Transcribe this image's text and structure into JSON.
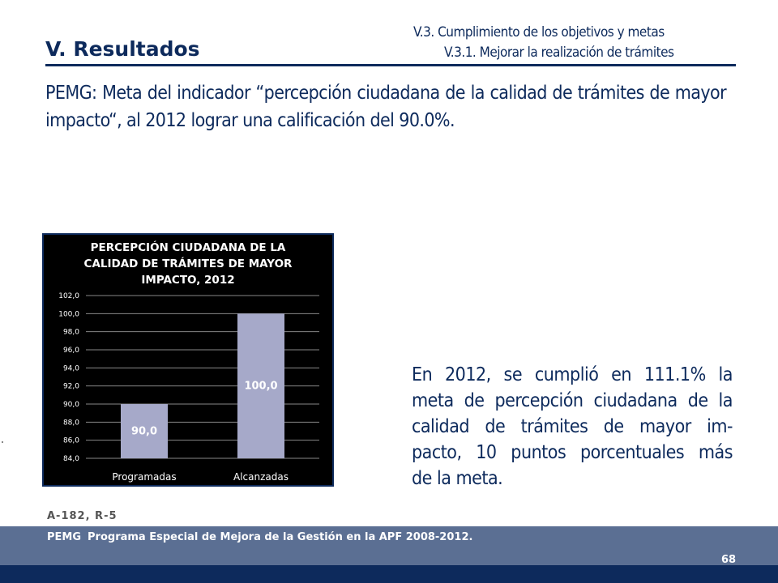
{
  "header": {
    "section_title": "V. Resultados",
    "subsection": "V.3. Cumplimiento de los objetivos y metas",
    "subsubsection": "V.3.1. Mejorar la realización de trámites"
  },
  "intro_text": "PEMG: Meta del indicador “percepción ciudadana de la calidad de trámites de mayor impacto“, al 2012 lograr una calificación del 90.0%.",
  "chart_data": {
    "type": "bar",
    "title_lines": [
      "PERCEPCIÓN CIUDADANA DE LA",
      "CALIDAD DE TRÁMITES DE MAYOR",
      "IMPACTO, 2012"
    ],
    "categories": [
      "Programadas",
      "Alcanzadas"
    ],
    "values": [
      90.0,
      100.0
    ],
    "data_labels": [
      "90,0",
      "100,0"
    ],
    "ylim": [
      84.0,
      102.0
    ],
    "yticks": [
      "84,0",
      "86,0",
      "88,0",
      "90,0",
      "92,0",
      "94,0",
      "96,0",
      "98,0",
      "100,0",
      "102,0"
    ],
    "grid": true,
    "colors": {
      "background": "#000000",
      "bar": "#a6a9c9",
      "grid": "#888888",
      "text": "#ffffff",
      "data_label": "#ffffff"
    }
  },
  "result_text_lines": [
    "En 2012, se cumplió en 111.1% la",
    "meta de percepción ciudadana de la",
    "calidad de trámites de mayor im-",
    "pacto, 10 puntos porcentuales más",
    "de la meta."
  ],
  "reference": "A-182, R-5",
  "footer": {
    "abbr": "PEMG",
    "text": "Programa Especial de Mejora de la Gestión en la APF 2008-2012.",
    "page_number": "68"
  },
  "colors": {
    "primary": "#0d2a5c",
    "footer_band": "#5b6f93"
  }
}
